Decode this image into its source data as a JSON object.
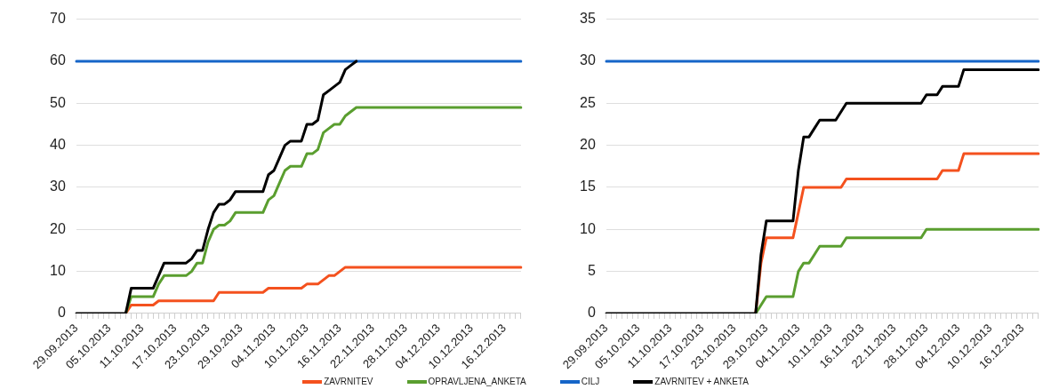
{
  "chart_data": [
    {
      "type": "line",
      "categories": [
        "29.09.2013",
        null,
        null,
        null,
        null,
        null,
        "05.10.2013",
        null,
        null,
        null,
        null,
        null,
        "11.10.2013",
        null,
        null,
        null,
        null,
        null,
        "17.10.2013",
        null,
        null,
        null,
        null,
        null,
        "23.10.2013",
        null,
        null,
        null,
        null,
        null,
        "29.10.2013",
        null,
        null,
        null,
        null,
        null,
        "04.11.2013",
        null,
        null,
        null,
        null,
        null,
        "10.11.2013",
        null,
        null,
        null,
        null,
        null,
        "16.11.2013",
        null,
        null,
        null,
        null,
        null,
        "22.11.2013",
        null,
        null,
        null,
        null,
        null,
        "28.11.2013",
        null,
        null,
        null,
        null,
        null,
        "04.12.2013",
        null,
        null,
        null,
        null,
        null,
        "10.12.2013",
        null,
        null,
        null,
        null,
        null,
        "16.12.2013",
        null,
        null,
        null
      ],
      "ylim": [
        0,
        70
      ],
      "yticks": [
        0,
        10,
        20,
        30,
        40,
        50,
        60,
        70
      ],
      "grid": "y",
      "legend": "bottom",
      "series": [
        {
          "name": "ZAVRNITEV",
          "color": "#f4511e",
          "values": [
            null,
            null,
            null,
            null,
            null,
            null,
            null,
            null,
            null,
            0,
            2,
            2,
            2,
            2,
            2,
            3,
            3,
            3,
            3,
            3,
            3,
            3,
            3,
            3,
            3,
            3,
            5,
            5,
            5,
            5,
            5,
            5,
            5,
            5,
            5,
            6,
            6,
            6,
            6,
            6,
            6,
            6,
            7,
            7,
            7,
            8,
            9,
            9,
            10,
            11,
            11,
            11,
            11,
            11,
            11,
            11,
            11,
            11,
            11,
            11,
            11,
            11,
            11,
            11,
            11,
            11,
            11,
            11,
            11,
            11,
            11,
            11,
            11,
            11,
            11,
            11,
            11,
            11,
            11,
            11,
            11,
            11
          ]
        },
        {
          "name": "OPRAVLJENA_ANKETA",
          "color": "#5a9e2f",
          "values": [
            null,
            null,
            null,
            null,
            null,
            null,
            null,
            null,
            null,
            0,
            4,
            4,
            4,
            4,
            4,
            7,
            9,
            9,
            9,
            9,
            9,
            10,
            12,
            12,
            17,
            20,
            21,
            21,
            22,
            24,
            24,
            24,
            24,
            24,
            24,
            27,
            28,
            31,
            34,
            35,
            35,
            35,
            38,
            38,
            39,
            43,
            44,
            45,
            45,
            47,
            48,
            49,
            49,
            49,
            49,
            49,
            49,
            49,
            49,
            49,
            49,
            49,
            49,
            49,
            49,
            49,
            49,
            49,
            49,
            49,
            49,
            49,
            49,
            49,
            49,
            49,
            49,
            49,
            49,
            49,
            49,
            49
          ]
        },
        {
          "name": "CILJ",
          "color": "#1565c8",
          "values": [
            60,
            60,
            60,
            60,
            60,
            60,
            60,
            60,
            60,
            60,
            60,
            60,
            60,
            60,
            60,
            60,
            60,
            60,
            60,
            60,
            60,
            60,
            60,
            60,
            60,
            60,
            60,
            60,
            60,
            60,
            60,
            60,
            60,
            60,
            60,
            60,
            60,
            60,
            60,
            60,
            60,
            60,
            60,
            60,
            60,
            60,
            60,
            60,
            60,
            60,
            60,
            60,
            60,
            60,
            60,
            60,
            60,
            60,
            60,
            60,
            60,
            60,
            60,
            60,
            60,
            60,
            60,
            60,
            60,
            60,
            60,
            60,
            60,
            60,
            60,
            60,
            60,
            60,
            60,
            60,
            60,
            60
          ]
        },
        {
          "name": "ZAVRNITEV + ANKETA",
          "color": "#000000",
          "values": [
            0,
            0,
            0,
            0,
            0,
            0,
            0,
            0,
            0,
            0,
            6,
            6,
            6,
            6,
            6,
            9,
            12,
            12,
            12,
            12,
            12,
            13,
            15,
            15,
            20,
            24,
            26,
            26,
            27,
            29,
            29,
            29,
            29,
            29,
            29,
            33,
            34,
            37,
            40,
            41,
            41,
            41,
            45,
            45,
            46,
            52,
            53,
            54,
            55,
            58,
            59,
            60,
            null,
            null,
            null,
            null,
            null,
            null,
            null,
            null,
            null,
            null,
            null,
            null,
            null,
            null,
            null,
            null,
            null,
            null,
            null,
            null,
            null,
            null,
            null,
            null,
            null,
            null,
            null,
            null,
            null,
            null
          ]
        }
      ]
    },
    {
      "type": "line",
      "categories": [
        "29.09.2013",
        null,
        null,
        null,
        null,
        null,
        "05.10.2013",
        null,
        null,
        null,
        null,
        null,
        "11.10.2013",
        null,
        null,
        null,
        null,
        null,
        "17.10.2013",
        null,
        null,
        null,
        null,
        null,
        "23.10.2013",
        null,
        null,
        null,
        null,
        null,
        "29.10.2013",
        null,
        null,
        null,
        null,
        null,
        "04.11.2013",
        null,
        null,
        null,
        null,
        null,
        "10.11.2013",
        null,
        null,
        null,
        null,
        null,
        "16.11.2013",
        null,
        null,
        null,
        null,
        null,
        "22.11.2013",
        null,
        null,
        null,
        null,
        null,
        "28.11.2013",
        null,
        null,
        null,
        null,
        null,
        "04.12.2013",
        null,
        null,
        null,
        null,
        null,
        "10.12.2013",
        null,
        null,
        null,
        null,
        null,
        "16.12.2013",
        null,
        null,
        null
      ],
      "ylim": [
        0,
        35
      ],
      "yticks": [
        0,
        5,
        10,
        15,
        20,
        25,
        30,
        35
      ],
      "grid": "y",
      "series": [
        {
          "color": "#f4511e",
          "values": [
            null,
            null,
            null,
            null,
            null,
            null,
            null,
            null,
            null,
            null,
            null,
            null,
            null,
            null,
            null,
            null,
            null,
            null,
            null,
            null,
            null,
            null,
            null,
            null,
            null,
            null,
            null,
            null,
            0,
            6,
            9,
            9,
            9,
            9,
            9,
            9,
            12,
            15,
            15,
            15,
            15,
            15,
            15,
            15,
            15,
            16,
            16,
            16,
            16,
            16,
            16,
            16,
            16,
            16,
            16,
            16,
            16,
            16,
            16,
            16,
            16,
            16,
            16,
            17,
            17,
            17,
            17,
            19,
            19,
            19,
            19,
            19,
            19,
            19,
            19,
            19,
            19,
            19,
            19,
            19,
            19,
            19
          ]
        },
        {
          "color": "#5a9e2f",
          "values": [
            null,
            null,
            null,
            null,
            null,
            null,
            null,
            null,
            null,
            null,
            null,
            null,
            null,
            null,
            null,
            null,
            null,
            null,
            null,
            null,
            null,
            null,
            null,
            null,
            null,
            null,
            null,
            null,
            0,
            1,
            2,
            2,
            2,
            2,
            2,
            2,
            5,
            6,
            6,
            7,
            8,
            8,
            8,
            8,
            8,
            9,
            9,
            9,
            9,
            9,
            9,
            9,
            9,
            9,
            9,
            9,
            9,
            9,
            9,
            9,
            10,
            10,
            10,
            10,
            10,
            10,
            10,
            10,
            10,
            10,
            10,
            10,
            10,
            10,
            10,
            10,
            10,
            10,
            10,
            10,
            10,
            10
          ]
        },
        {
          "color": "#1565c8",
          "values": [
            30,
            30,
            30,
            30,
            30,
            30,
            30,
            30,
            30,
            30,
            30,
            30,
            30,
            30,
            30,
            30,
            30,
            30,
            30,
            30,
            30,
            30,
            30,
            30,
            30,
            30,
            30,
            30,
            30,
            30,
            30,
            30,
            30,
            30,
            30,
            30,
            30,
            30,
            30,
            30,
            30,
            30,
            30,
            30,
            30,
            30,
            30,
            30,
            30,
            30,
            30,
            30,
            30,
            30,
            30,
            30,
            30,
            30,
            30,
            30,
            30,
            30,
            30,
            30,
            30,
            30,
            30,
            30,
            30,
            30,
            30,
            30,
            30,
            30,
            30,
            30,
            30,
            30,
            30,
            30,
            30,
            30
          ]
        },
        {
          "color": "#000000",
          "values": [
            0,
            0,
            0,
            0,
            0,
            0,
            0,
            0,
            0,
            0,
            0,
            0,
            0,
            0,
            0,
            0,
            0,
            0,
            0,
            0,
            0,
            0,
            0,
            0,
            0,
            0,
            0,
            0,
            0,
            7,
            11,
            11,
            11,
            11,
            11,
            11,
            17,
            21,
            21,
            22,
            23,
            23,
            23,
            23,
            24,
            25,
            25,
            25,
            25,
            25,
            25,
            25,
            25,
            25,
            25,
            25,
            25,
            25,
            25,
            25,
            26,
            26,
            26,
            27,
            27,
            27,
            27,
            29,
            29,
            29,
            29,
            29,
            29,
            29,
            29,
            29,
            29,
            29,
            29,
            29,
            29,
            29
          ]
        }
      ]
    }
  ]
}
